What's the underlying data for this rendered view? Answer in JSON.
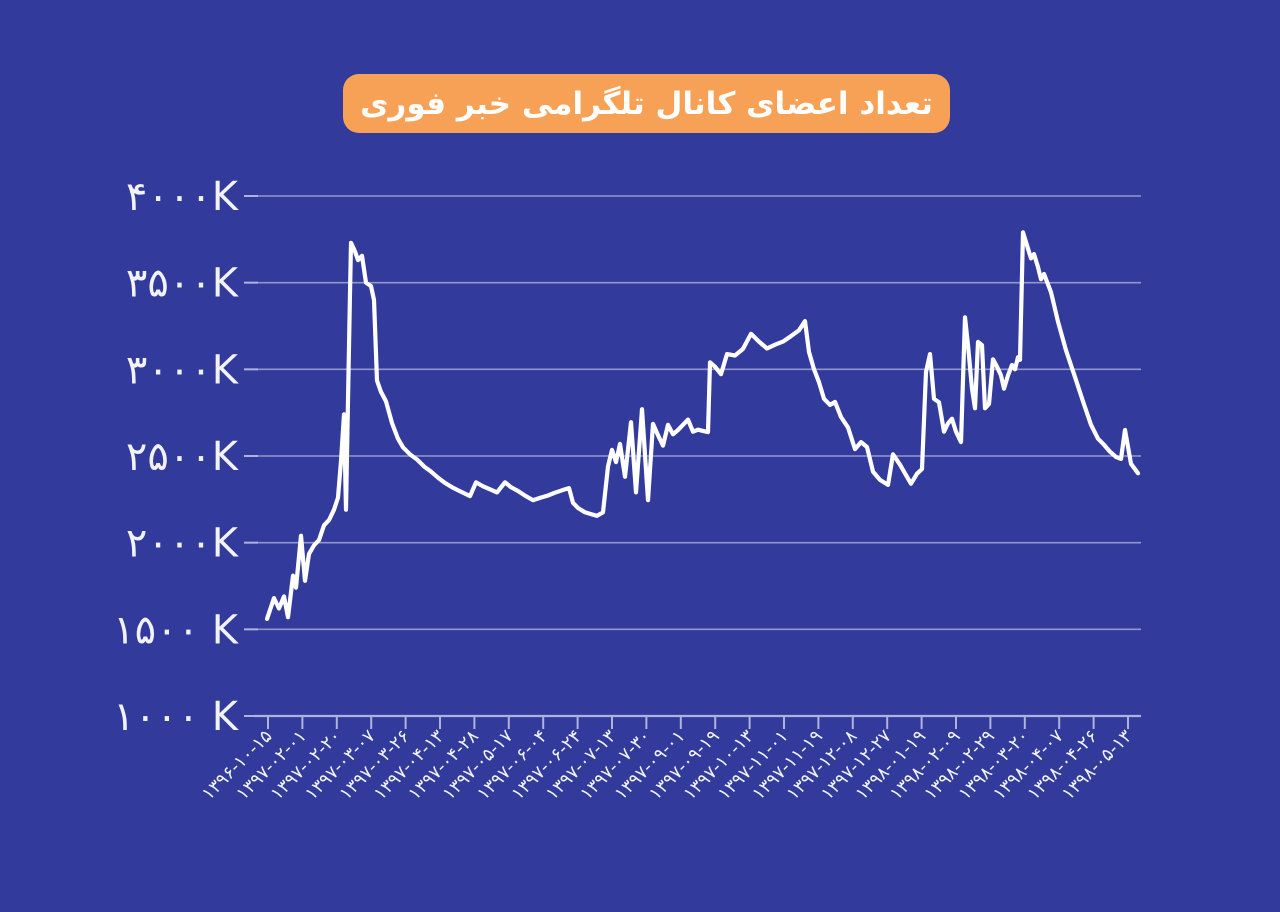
{
  "chart": {
    "title": "تعداد اعضای کانال تلگرامی خبر فوری"
  },
  "colors": {
    "background": "#323A9B",
    "title_badge": "#F7A156",
    "title_text": "#FFFFFF",
    "grid": "#9196CD",
    "axis": "#AEB2DC",
    "line": "#FFFFFF",
    "label_text": "#F2F3FA"
  },
  "chart_data": {
    "type": "line",
    "title": "تعداد اعضای کانال تلگرامی خبر فوری",
    "ylabel_unit": "K",
    "ylim": [
      1000,
      4000
    ],
    "grid": "horizontal",
    "legend": "none",
    "y_ticks": [
      {
        "value": 4000,
        "label": "۴۰۰۰K"
      },
      {
        "value": 3500,
        "label": "۳۵۰۰K"
      },
      {
        "value": 3000,
        "label": "۳۰۰۰K"
      },
      {
        "value": 2500,
        "label": "۲۵۰۰K"
      },
      {
        "value": 2000,
        "label": "۲۰۰۰K"
      },
      {
        "value": 1500,
        "label": "۱۵۰۰ K"
      },
      {
        "value": 1000,
        "label": "۱۰۰۰ K"
      }
    ],
    "x_ticks": [
      "۱۳۹۶-۱۰-۱۵",
      "۱۳۹۷-۰۲-۰۱",
      "۱۳۹۷-۰۲-۲۰",
      "۱۳۹۷-۰۳-۰۷",
      "۱۳۹۷-۰۳-۲۶",
      "۱۳۹۷-۰۴-۱۳",
      "۱۳۹۷-۰۴-۲۸",
      "۱۳۹۷-۰۵-۱۷",
      "۱۳۹۷-۰۶-۰۴",
      "۱۳۹۷-۰۶-۲۴",
      "۱۳۹۷-۰۷-۱۳",
      "۱۳۹۷-۰۷-۳۰",
      "۱۳۹۷-۰۹-۰۱",
      "۱۳۹۷-۰۹-۱۹",
      "۱۳۹۷-۱۰-۱۳",
      "۱۳۹۷-۱۱-۰۱",
      "۱۳۹۷-۱۱-۱۹",
      "۱۳۹۷-۱۲-۰۸",
      "۱۳۹۷-۱۲-۲۷",
      "۱۳۹۸-۰۱-۱۹",
      "۱۳۹۸-۰۲-۰۹",
      "۱۳۹۸-۰۲-۲۹",
      "۱۳۹۸-۰۳-۲۰",
      "۱۳۹۸-۰۴-۰۷",
      "۱۳۹۸-۰۴-۲۶",
      "۱۳۹۸-۰۵-۱۳"
    ],
    "points_note": "series of channel members, value in thousands (K); x_px is horizontal position read from screenshot",
    "points": [
      [
        267,
        1560
      ],
      [
        274,
        1680
      ],
      [
        279,
        1620
      ],
      [
        284,
        1690
      ],
      [
        288,
        1570
      ],
      [
        293,
        1810
      ],
      [
        296,
        1740
      ],
      [
        301,
        2040
      ],
      [
        305,
        1780
      ],
      [
        309,
        1935
      ],
      [
        314,
        1985
      ],
      [
        319,
        2015
      ],
      [
        324,
        2100
      ],
      [
        329,
        2130
      ],
      [
        334,
        2190
      ],
      [
        338,
        2260
      ],
      [
        341,
        2470
      ],
      [
        344,
        2740
      ],
      [
        346,
        2190
      ],
      [
        348,
        2820
      ],
      [
        350,
        3440
      ],
      [
        351,
        3730
      ],
      [
        355,
        3680
      ],
      [
        358,
        3630
      ],
      [
        362,
        3655
      ],
      [
        366,
        3500
      ],
      [
        371,
        3480
      ],
      [
        374,
        3400
      ],
      [
        377,
        2935
      ],
      [
        381,
        2870
      ],
      [
        386,
        2815
      ],
      [
        392,
        2690
      ],
      [
        398,
        2600
      ],
      [
        403,
        2550
      ],
      [
        410,
        2510
      ],
      [
        417,
        2480
      ],
      [
        424,
        2440
      ],
      [
        431,
        2410
      ],
      [
        438,
        2375
      ],
      [
        445,
        2345
      ],
      [
        452,
        2320
      ],
      [
        459,
        2300
      ],
      [
        466,
        2280
      ],
      [
        470,
        2268
      ],
      [
        476,
        2348
      ],
      [
        483,
        2325
      ],
      [
        490,
        2308
      ],
      [
        497,
        2290
      ],
      [
        505,
        2348
      ],
      [
        511,
        2320
      ],
      [
        518,
        2298
      ],
      [
        526,
        2268
      ],
      [
        533,
        2245
      ],
      [
        540,
        2258
      ],
      [
        548,
        2272
      ],
      [
        555,
        2288
      ],
      [
        562,
        2302
      ],
      [
        569,
        2315
      ],
      [
        573,
        2230
      ],
      [
        578,
        2200
      ],
      [
        585,
        2175
      ],
      [
        591,
        2165
      ],
      [
        597,
        2155
      ],
      [
        603,
        2175
      ],
      [
        608,
        2440
      ],
      [
        612,
        2535
      ],
      [
        616,
        2465
      ],
      [
        620,
        2570
      ],
      [
        625,
        2380
      ],
      [
        631,
        2695
      ],
      [
        636,
        2290
      ],
      [
        642,
        2770
      ],
      [
        648,
        2245
      ],
      [
        653,
        2685
      ],
      [
        658,
        2620
      ],
      [
        663,
        2560
      ],
      [
        668,
        2680
      ],
      [
        673,
        2625
      ],
      [
        678,
        2650
      ],
      [
        683,
        2680
      ],
      [
        688,
        2710
      ],
      [
        693,
        2640
      ],
      [
        698,
        2652
      ],
      [
        703,
        2645
      ],
      [
        708,
        2638
      ],
      [
        710,
        3040
      ],
      [
        715,
        3015
      ],
      [
        721,
        2972
      ],
      [
        727,
        3088
      ],
      [
        735,
        3080
      ],
      [
        743,
        3118
      ],
      [
        751,
        3205
      ],
      [
        759,
        3160
      ],
      [
        767,
        3120
      ],
      [
        775,
        3142
      ],
      [
        783,
        3160
      ],
      [
        791,
        3192
      ],
      [
        799,
        3225
      ],
      [
        805,
        3278
      ],
      [
        809,
        3100
      ],
      [
        814,
        3000
      ],
      [
        819,
        2925
      ],
      [
        824,
        2830
      ],
      [
        830,
        2795
      ],
      [
        835,
        2812
      ],
      [
        841,
        2725
      ],
      [
        848,
        2665
      ],
      [
        855,
        2540
      ],
      [
        861,
        2580
      ],
      [
        867,
        2552
      ],
      [
        873,
        2410
      ],
      [
        880,
        2362
      ],
      [
        888,
        2333
      ],
      [
        893,
        2510
      ],
      [
        900,
        2450
      ],
      [
        907,
        2380
      ],
      [
        911,
        2340
      ],
      [
        917,
        2398
      ],
      [
        922,
        2425
      ],
      [
        926,
        2985
      ],
      [
        930,
        3088
      ],
      [
        934,
        2830
      ],
      [
        939,
        2810
      ],
      [
        944,
        2640
      ],
      [
        948,
        2688
      ],
      [
        952,
        2715
      ],
      [
        956,
        2640
      ],
      [
        961,
        2580
      ],
      [
        965,
        3300
      ],
      [
        968,
        3140
      ],
      [
        972,
        2888
      ],
      [
        975,
        2775
      ],
      [
        978,
        3158
      ],
      [
        982,
        3140
      ],
      [
        985,
        2775
      ],
      [
        989,
        2800
      ],
      [
        993,
        3058
      ],
      [
        997,
        3015
      ],
      [
        1001,
        2965
      ],
      [
        1004,
        2888
      ],
      [
        1008,
        2965
      ],
      [
        1012,
        3025
      ],
      [
        1015,
        3000
      ],
      [
        1018,
        3070
      ],
      [
        1020,
        3055
      ],
      [
        1023,
        3790
      ],
      [
        1027,
        3715
      ],
      [
        1031,
        3640
      ],
      [
        1034,
        3665
      ],
      [
        1038,
        3590
      ],
      [
        1041,
        3520
      ],
      [
        1044,
        3550
      ],
      [
        1047,
        3505
      ],
      [
        1051,
        3445
      ],
      [
        1058,
        3275
      ],
      [
        1066,
        3110
      ],
      [
        1075,
        2955
      ],
      [
        1083,
        2815
      ],
      [
        1091,
        2680
      ],
      [
        1098,
        2600
      ],
      [
        1104,
        2565
      ],
      [
        1110,
        2525
      ],
      [
        1116,
        2495
      ],
      [
        1121,
        2483
      ],
      [
        1125,
        2650
      ],
      [
        1131,
        2455
      ],
      [
        1138,
        2400
      ]
    ]
  }
}
